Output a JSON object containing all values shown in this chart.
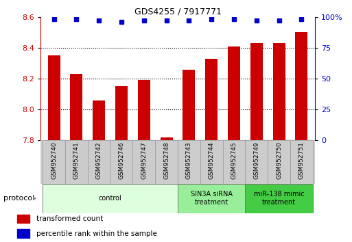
{
  "title": "GDS4255 / 7917771",
  "samples": [
    "GSM952740",
    "GSM952741",
    "GSM952742",
    "GSM952746",
    "GSM952747",
    "GSM952748",
    "GSM952743",
    "GSM952744",
    "GSM952745",
    "GSM952749",
    "GSM952750",
    "GSM952751"
  ],
  "bar_values": [
    8.35,
    8.23,
    8.06,
    8.15,
    8.19,
    7.82,
    8.26,
    8.33,
    8.41,
    8.43,
    8.43,
    8.5
  ],
  "percentile_values": [
    98,
    98,
    97,
    96,
    97,
    97,
    97,
    98,
    98,
    97,
    97,
    98
  ],
  "bar_color": "#cc0000",
  "dot_color": "#0000cc",
  "ylim_left": [
    7.8,
    8.6
  ],
  "ylim_right": [
    0,
    100
  ],
  "yticks_left": [
    7.8,
    8.0,
    8.2,
    8.4,
    8.6
  ],
  "yticks_right": [
    0,
    25,
    50,
    75,
    100
  ],
  "groups": [
    {
      "label": "control",
      "start": 0,
      "end": 6,
      "color": "#ddffdd",
      "text_color": "#000000"
    },
    {
      "label": "SIN3A siRNA\ntreatment",
      "start": 6,
      "end": 9,
      "color": "#99ee99",
      "text_color": "#000000"
    },
    {
      "label": "miR-138 mimic\ntreatment",
      "start": 9,
      "end": 12,
      "color": "#44cc44",
      "text_color": "#000000"
    }
  ],
  "legend_items": [
    {
      "label": "transformed count",
      "color": "#cc0000"
    },
    {
      "label": "percentile rank within the sample",
      "color": "#0000cc"
    }
  ],
  "background_color": "#ffffff",
  "bar_width": 0.55,
  "protocol_label": "protocol"
}
